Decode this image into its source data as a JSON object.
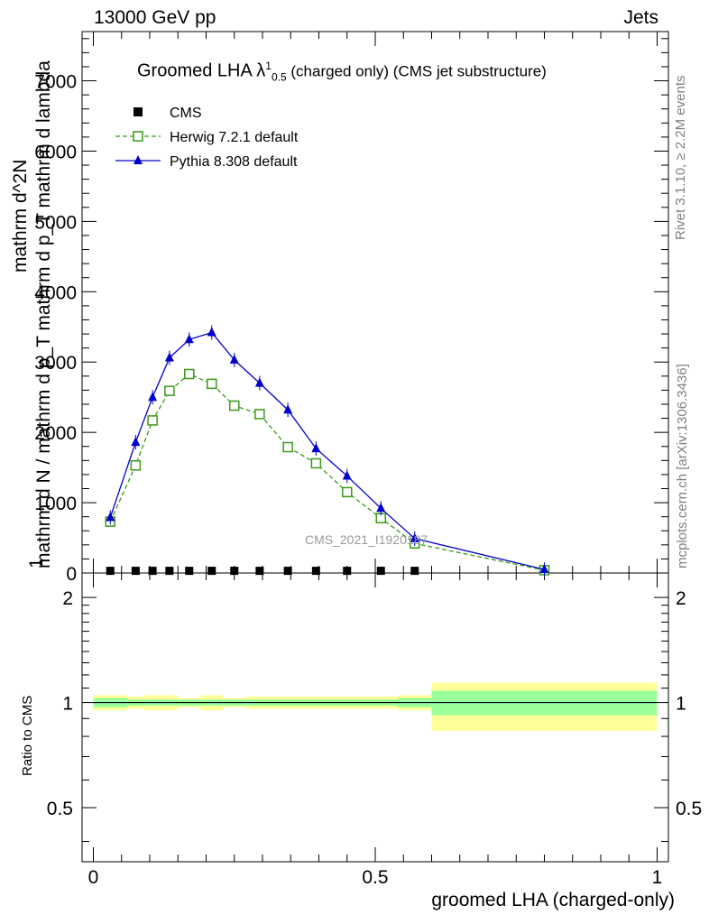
{
  "header": {
    "left": "13000 GeV pp",
    "right": "Jets"
  },
  "title": {
    "main": "Groomed LHA λ",
    "sup": "1",
    "sub": "0.5",
    "suffix": " (charged only) (CMS jet substructure)"
  },
  "ylabel_main": {
    "line1": "1",
    "line2": "mathrm d N / mathrm d p_T mathrm d p_T mathrm d lambda",
    "line3": "mathrm d^2N"
  },
  "ylabel_ratio": "Ratio to CMS",
  "xlabel": "groomed LHA (charged-only)",
  "side_text": {
    "rivet": "Rivet 3.1.10, ≥ 2.2M events",
    "mcplots": "mcplots.cern.ch [arXiv:1306.3436]"
  },
  "watermark": "CMS_2021_I1920187",
  "legend": [
    {
      "label": "CMS",
      "marker": "filled-square",
      "color": "#000000"
    },
    {
      "label": "Herwig 7.2.1 default",
      "marker": "open-square",
      "color": "#3a9a1a",
      "line": "dashed"
    },
    {
      "label": "Pythia 8.308 default",
      "marker": "filled-triangle",
      "color": "#0000cc",
      "line": "solid"
    }
  ],
  "chart_data": [
    {
      "type": "line",
      "panel": "main",
      "xlim": [
        -0.02,
        1.02
      ],
      "ylim": [
        0,
        7700
      ],
      "y_ticks": [
        0,
        1000,
        2000,
        3000,
        4000,
        5000,
        6000,
        7000
      ],
      "y_tick_labels": [
        "0",
        "1000",
        "2000",
        "3000",
        "4000",
        "5000",
        "6000",
        "7000"
      ],
      "series": [
        {
          "name": "CMS",
          "x": [
            0.03,
            0.075,
            0.105,
            0.135,
            0.17,
            0.21,
            0.25,
            0.295,
            0.345,
            0.395,
            0.45,
            0.51,
            0.57
          ],
          "y": [
            5,
            5,
            5,
            5,
            5,
            5,
            5,
            5,
            5,
            5,
            5,
            5,
            5
          ]
        },
        {
          "name": "Herwig 7.2.1 default",
          "x": [
            0.03,
            0.075,
            0.105,
            0.135,
            0.17,
            0.21,
            0.25,
            0.295,
            0.345,
            0.395,
            0.45,
            0.51,
            0.57,
            0.8
          ],
          "y": [
            730,
            1530,
            2170,
            2590,
            2830,
            2690,
            2380,
            2260,
            1790,
            1560,
            1150,
            780,
            420,
            40
          ]
        },
        {
          "name": "Pythia 8.308 default",
          "x": [
            0.03,
            0.075,
            0.105,
            0.135,
            0.17,
            0.21,
            0.25,
            0.295,
            0.345,
            0.395,
            0.45,
            0.51,
            0.57,
            0.8
          ],
          "y": [
            790,
            1860,
            2500,
            3060,
            3320,
            3420,
            3030,
            2700,
            2320,
            1770,
            1380,
            920,
            490,
            50
          ]
        }
      ]
    },
    {
      "type": "area",
      "panel": "ratio",
      "xlim": [
        -0.02,
        1.02
      ],
      "ylim": [
        0.35,
        2.35
      ],
      "y_ticks": [
        0.5,
        1,
        2
      ],
      "y_tick_labels": [
        "0.5",
        "1",
        "2"
      ],
      "x_ticks": [
        0,
        0.5,
        1
      ],
      "x_tick_labels": [
        "0",
        "0.5",
        "1"
      ],
      "bin_edges": [
        0.0,
        0.06,
        0.09,
        0.12,
        0.15,
        0.19,
        0.23,
        0.27,
        0.32,
        0.37,
        0.42,
        0.48,
        0.54,
        0.6,
        1.0
      ],
      "series": [
        {
          "name": "inner",
          "low": [
            0.97,
            0.98,
            0.98,
            0.98,
            0.98,
            0.98,
            0.98,
            0.98,
            0.98,
            0.98,
            0.98,
            0.98,
            0.97,
            0.92
          ],
          "high": [
            1.03,
            1.02,
            1.02,
            1.02,
            1.02,
            1.02,
            1.02,
            1.02,
            1.02,
            1.02,
            1.02,
            1.02,
            1.03,
            1.08
          ]
        },
        {
          "name": "outer",
          "low": [
            0.95,
            0.96,
            0.95,
            0.95,
            0.97,
            0.95,
            0.97,
            0.96,
            0.96,
            0.96,
            0.96,
            0.96,
            0.95,
            0.83
          ],
          "high": [
            1.05,
            1.04,
            1.05,
            1.05,
            1.03,
            1.05,
            1.03,
            1.04,
            1.04,
            1.04,
            1.04,
            1.04,
            1.05,
            1.14
          ]
        }
      ],
      "reference_line": 1.0
    }
  ],
  "colors": {
    "band_inner": "#99ff99",
    "band_outer": "#ffff99",
    "herwig": "#3a9a1a",
    "pythia": "#0000cc"
  }
}
